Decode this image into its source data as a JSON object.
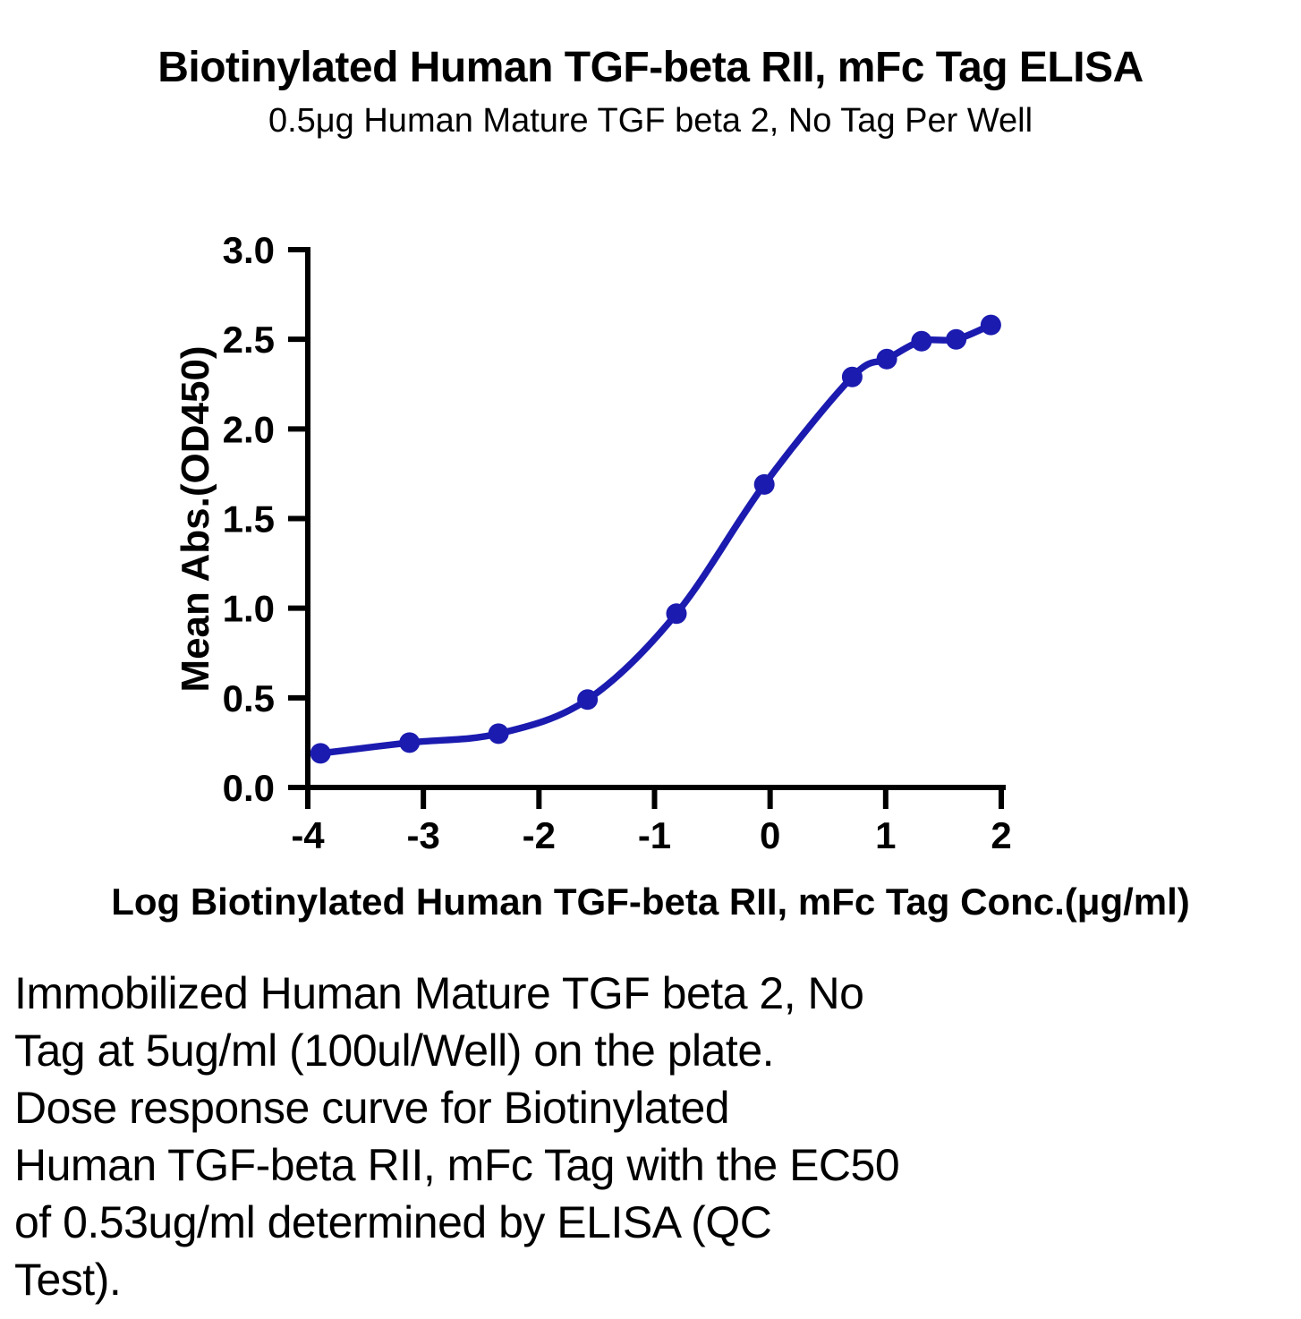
{
  "chart_data": {
    "type": "line",
    "title": "Biotinylated Human TGF-beta RII, mFc Tag ELISA",
    "subtitle": "0.5μg Human Mature TGF beta 2, No Tag Per Well",
    "xlabel": "Log Biotinylated Human TGF-beta RII, mFc Tag Conc.(μg/ml)",
    "ylabel": "Mean Abs.(OD450)",
    "xlim": [
      -4,
      2
    ],
    "ylim": [
      0,
      3
    ],
    "x_ticks": [
      -4,
      -3,
      -2,
      -1,
      0,
      1,
      2
    ],
    "x_tick_labels": [
      "-4",
      "-3",
      "-2",
      "-1",
      "0",
      "1",
      "2"
    ],
    "y_ticks": [
      0,
      0.5,
      1,
      1.5,
      2,
      2.5,
      3
    ],
    "y_tick_labels": [
      "0.0",
      "0.5",
      "1.0",
      "1.5",
      "2.0",
      "2.5",
      "3.0"
    ],
    "grid": false,
    "legend": "none",
    "series": [
      {
        "name": "Biotinylated Human TGF-beta RII, mFc Tag",
        "x": [
          -3.89,
          -3.12,
          -2.35,
          -1.58,
          -0.81,
          -0.05,
          0.71,
          1.01,
          1.31,
          1.61,
          1.91
        ],
        "y": [
          0.19,
          0.25,
          0.3,
          0.49,
          0.97,
          1.69,
          2.29,
          2.39,
          2.49,
          2.5,
          2.58
        ],
        "color": "#1B1BB0",
        "marker": "circle",
        "curve": "smooth-sigmoid-fit"
      }
    ]
  },
  "caption": {
    "lines": [
      "Immobilized Human Mature TGF beta 2, No",
      "Tag at 5ug/ml (100ul/Well) on the plate.",
      "Dose response curve for Biotinylated",
      "Human TGF-beta RII, mFc Tag with the EC50",
      "of 0.53ug/ml determined by ELISA (QC",
      "Test)."
    ],
    "ec50": "0.53ug/ml"
  }
}
